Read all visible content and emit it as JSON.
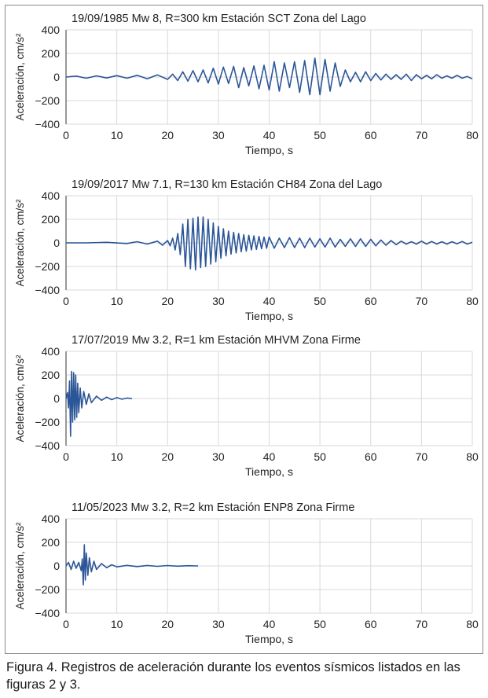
{
  "caption": {
    "label": "Figura 4.",
    "text": "Registros de aceleración durante los eventos sísmicos listados en las figuras 2 y 3."
  },
  "colors": {
    "trace": "#2b5697",
    "grid": "#d9d9d9",
    "axis": "#333333"
  },
  "chart_data": [
    {
      "type": "line",
      "title": "19/09/1985 Mw 8, R=300 km Estación SCT Zona del Lago",
      "xlabel": "Tiempo, s",
      "ylabel": "Aceleración, cm/s²",
      "xlim": [
        0,
        80
      ],
      "ylim": [
        -400,
        400
      ],
      "xticks": [
        0,
        10,
        20,
        30,
        40,
        50,
        60,
        70,
        80
      ],
      "yticks": [
        400,
        200,
        0,
        -200,
        -400
      ],
      "xtick_labels": [
        "0",
        "10",
        "20",
        "30",
        "40",
        "50",
        "60",
        "70",
        "80"
      ],
      "ytick_labels": [
        "400",
        "200",
        "0",
        "−200",
        "−400"
      ],
      "series": [
        {
          "name": "SCT",
          "x": [
            0,
            2,
            4,
            6,
            8,
            10,
            12,
            14,
            16,
            18,
            20,
            21,
            22,
            23,
            24,
            25,
            26,
            27,
            28,
            29,
            30,
            31,
            32,
            33,
            34,
            35,
            36,
            37,
            38,
            39,
            40,
            41,
            42,
            43,
            44,
            45,
            46,
            47,
            48,
            49,
            50,
            51,
            52,
            53,
            54,
            55,
            56,
            57,
            58,
            59,
            60,
            61,
            62,
            63,
            64,
            65,
            66,
            67,
            68,
            69,
            70,
            71,
            72,
            73,
            74,
            75,
            76,
            77,
            78,
            79,
            80
          ],
          "y": [
            0,
            8,
            -10,
            10,
            -8,
            12,
            -10,
            15,
            -15,
            18,
            -20,
            25,
            -30,
            45,
            -35,
            55,
            -40,
            60,
            -50,
            75,
            -60,
            85,
            -55,
            90,
            -90,
            80,
            -75,
            95,
            -100,
            100,
            -110,
            130,
            -120,
            120,
            -90,
            130,
            -130,
            140,
            -150,
            160,
            -150,
            150,
            -120,
            120,
            -80,
            60,
            -40,
            40,
            -40,
            45,
            -30,
            30,
            -25,
            25,
            -20,
            20,
            -20,
            25,
            -30,
            20,
            -15,
            15,
            -15,
            20,
            -10,
            10,
            -10,
            15,
            -10,
            5,
            -15
          ]
        }
      ]
    },
    {
      "type": "line",
      "title": "19/09/2017 Mw 7.1, R=130 km Estación CH84 Zona del Lago",
      "xlabel": "Tiempo, s",
      "ylabel": "Aceleración, cm/s²",
      "xlim": [
        0,
        80
      ],
      "ylim": [
        -400,
        400
      ],
      "xticks": [
        0,
        10,
        20,
        30,
        40,
        50,
        60,
        70,
        80
      ],
      "yticks": [
        400,
        200,
        0,
        -200,
        -400
      ],
      "xtick_labels": [
        "0",
        "10",
        "20",
        "30",
        "40",
        "50",
        "60",
        "70",
        "80"
      ],
      "ytick_labels": [
        "400",
        "200",
        "0",
        "−200",
        "−400"
      ],
      "series": [
        {
          "name": "CH84",
          "x": [
            0,
            4,
            8,
            12,
            14,
            16,
            18,
            19,
            20,
            20.5,
            21,
            21.5,
            22,
            22.5,
            23,
            23.5,
            24,
            24.5,
            25,
            25.5,
            26,
            26.5,
            27,
            27.5,
            28,
            28.5,
            29,
            29.5,
            30,
            30.5,
            31,
            31.5,
            32,
            32.5,
            33,
            33.5,
            34,
            34.5,
            35,
            35.5,
            36,
            36.5,
            37,
            37.5,
            38,
            38.5,
            39,
            39.5,
            40,
            41,
            42,
            43,
            44,
            45,
            46,
            47,
            48,
            49,
            50,
            51,
            52,
            53,
            54,
            55,
            56,
            57,
            58,
            59,
            60,
            61,
            62,
            63,
            64,
            65,
            66,
            67,
            68,
            69,
            70,
            71,
            72,
            73,
            74,
            75,
            76,
            77,
            78,
            79,
            80
          ],
          "y": [
            0,
            0,
            5,
            -5,
            10,
            -10,
            15,
            -20,
            20,
            -25,
            40,
            -60,
            80,
            -100,
            160,
            -200,
            200,
            -220,
            210,
            -230,
            220,
            -210,
            220,
            -200,
            200,
            -180,
            170,
            -160,
            140,
            -130,
            120,
            -110,
            100,
            -95,
            90,
            -85,
            80,
            -75,
            70,
            -70,
            65,
            -60,
            60,
            -55,
            55,
            -50,
            50,
            -45,
            50,
            -45,
            40,
            -40,
            45,
            -40,
            40,
            -40,
            40,
            -35,
            35,
            -35,
            40,
            -35,
            30,
            -30,
            35,
            -30,
            35,
            -30,
            30,
            -25,
            25,
            -20,
            20,
            -15,
            15,
            -10,
            10,
            -10,
            15,
            -10,
            12,
            -10,
            10,
            -10,
            10,
            -8,
            12,
            -10,
            5
          ]
        }
      ]
    },
    {
      "type": "line",
      "title": "17/07/2019 Mw 3.2, R=1 km Estación MHVM Zona Firme",
      "xlabel": "Tiempo, s",
      "ylabel": "Aceleración, cm/s²",
      "xlim": [
        0,
        80
      ],
      "ylim": [
        -400,
        400
      ],
      "xticks": [
        0,
        10,
        20,
        30,
        40,
        50,
        60,
        70,
        80
      ],
      "yticks": [
        400,
        200,
        0,
        -200,
        -400
      ],
      "xtick_labels": [
        "0",
        "10",
        "20",
        "30",
        "40",
        "50",
        "60",
        "70",
        "80"
      ],
      "ytick_labels": [
        "400",
        "200",
        "0",
        "−200",
        "−400"
      ],
      "series": [
        {
          "name": "MHVM",
          "x": [
            0,
            0.3,
            0.5,
            0.7,
            0.9,
            1.1,
            1.3,
            1.5,
            1.7,
            1.9,
            2.1,
            2.3,
            2.5,
            2.8,
            3.1,
            3.5,
            4,
            4.5,
            5,
            6,
            7,
            8,
            9,
            10,
            11,
            12,
            13
          ],
          "y": [
            0,
            50,
            -80,
            150,
            -320,
            230,
            -200,
            220,
            -180,
            200,
            -160,
            130,
            -120,
            90,
            -80,
            60,
            -50,
            40,
            -35,
            20,
            -15,
            12,
            -10,
            8,
            -6,
            4,
            0
          ]
        }
      ]
    },
    {
      "type": "line",
      "title": "11/05/2023 Mw 3.2, R=2 km Estación ENP8 Zona Firme",
      "xlabel": "Tiempo, s",
      "ylabel": "Aceleración, cm/s²",
      "xlim": [
        0,
        80
      ],
      "ylim": [
        -400,
        400
      ],
      "xticks": [
        0,
        10,
        20,
        30,
        40,
        50,
        60,
        70,
        80
      ],
      "yticks": [
        400,
        200,
        0,
        -200,
        -400
      ],
      "xtick_labels": [
        "0",
        "10",
        "20",
        "30",
        "40",
        "50",
        "60",
        "70",
        "80"
      ],
      "ytick_labels": [
        "400",
        "200",
        "0",
        "−200",
        "−400"
      ],
      "series": [
        {
          "name": "ENP8",
          "x": [
            0,
            0.5,
            1,
            1.5,
            2,
            2.5,
            3,
            3.2,
            3.4,
            3.6,
            3.8,
            4,
            4.3,
            4.6,
            5,
            5.5,
            6,
            7,
            8,
            9,
            10,
            12,
            14,
            16,
            18,
            20,
            22,
            24,
            26
          ],
          "y": [
            0,
            30,
            -30,
            40,
            -20,
            30,
            -40,
            60,
            -160,
            180,
            -120,
            110,
            -80,
            70,
            -50,
            40,
            -30,
            20,
            -15,
            10,
            -8,
            5,
            -5,
            4,
            -3,
            3,
            -2,
            2,
            0
          ]
        }
      ]
    }
  ]
}
